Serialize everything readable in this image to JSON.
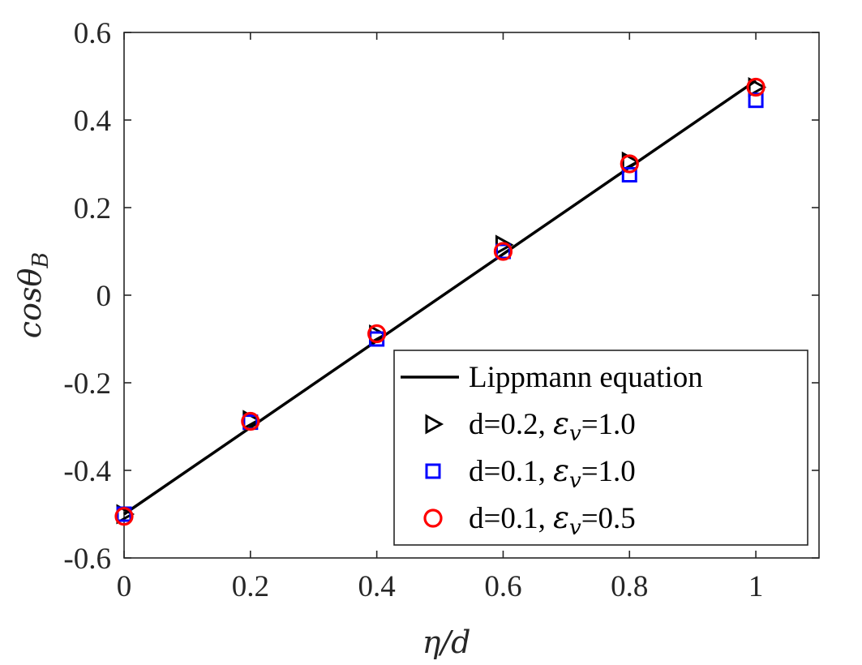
{
  "chart_data": {
    "type": "scatter",
    "xlabel": "η/d",
    "ylabel": "cosθ",
    "ylabel_sub": "B",
    "xlim": [
      0,
      1.1
    ],
    "ylim": [
      -0.6,
      0.6
    ],
    "xticks": [
      0,
      0.2,
      0.4,
      0.6,
      0.8,
      1
    ],
    "xtick_labels": [
      "0",
      "0.2",
      "0.4",
      "0.6",
      "0.8",
      "1"
    ],
    "yticks": [
      -0.6,
      -0.4,
      -0.2,
      0,
      0.2,
      0.4,
      0.6
    ],
    "ytick_labels": [
      "-0.6",
      "-0.4",
      "-0.2",
      "0",
      "0.2",
      "0.4",
      "0.6"
    ],
    "grid": false,
    "legend_position": "bottom-right",
    "line": {
      "name": "Lippmann equation",
      "x": [
        0,
        1
      ],
      "y": [
        -0.5,
        0.49
      ],
      "color": "#000000"
    },
    "series": [
      {
        "name_prefix": "d=0.2, ",
        "name_symbol": "ε",
        "name_sub": "v",
        "name_suffix": "=1.0",
        "marker": "triangle-right",
        "color": "#000000",
        "x": [
          0,
          0.2,
          0.4,
          0.6,
          0.8,
          1
        ],
        "y": [
          -0.5,
          -0.285,
          -0.09,
          0.115,
          0.305,
          0.475
        ]
      },
      {
        "name_prefix": "d=0.1, ",
        "name_symbol": "ε",
        "name_sub": "v",
        "name_suffix": "=1.0",
        "marker": "square",
        "color": "#0000ff",
        "x": [
          0,
          0.2,
          0.4,
          0.6,
          0.8,
          1
        ],
        "y": [
          -0.5,
          -0.29,
          -0.1,
          0.1,
          0.275,
          0.445
        ]
      },
      {
        "name_prefix": "d=0.1, ",
        "name_symbol": "ε",
        "name_sub": "v",
        "name_suffix": "=0.5",
        "marker": "circle",
        "color": "#ff0000",
        "x": [
          0,
          0.2,
          0.4,
          0.6,
          0.8,
          1
        ],
        "y": [
          -0.505,
          -0.288,
          -0.088,
          0.1,
          0.3,
          0.475
        ]
      }
    ]
  }
}
